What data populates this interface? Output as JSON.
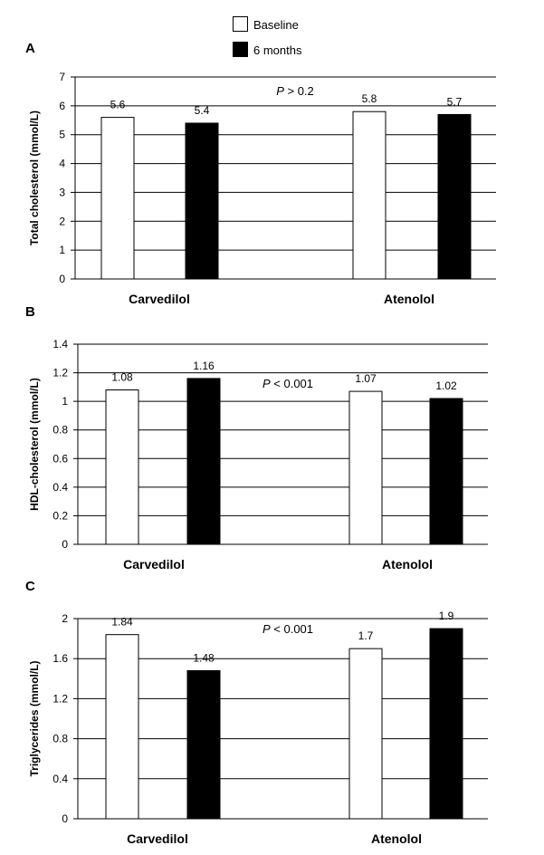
{
  "legend": {
    "items": [
      {
        "label": "Baseline",
        "color": "#ffffff"
      },
      {
        "label": "6 months",
        "color": "#000000"
      }
    ]
  },
  "chart_data": [
    {
      "type": "bar",
      "panel": "A",
      "categories": [
        "Carvedilol",
        "Atenolol"
      ],
      "series": [
        {
          "name": "Baseline",
          "values": [
            5.6,
            5.8
          ],
          "labels": [
            "5.6",
            "5.8"
          ]
        },
        {
          "name": "6 months",
          "values": [
            5.4,
            5.7
          ],
          "labels": [
            "5.4",
            "5.7"
          ]
        }
      ],
      "ylabel": "Total cholesterol (mmol/L)",
      "ylim": [
        0,
        7
      ],
      "yticks": [
        0,
        1,
        2,
        3,
        4,
        5,
        6,
        7
      ],
      "ytick_labels": [
        "0",
        "1",
        "2",
        "3",
        "4",
        "5",
        "6",
        "7"
      ],
      "annotation": {
        "p": "P",
        "rest": " > 0.2"
      },
      "grid": true
    },
    {
      "type": "bar",
      "panel": "B",
      "categories": [
        "Carvedilol",
        "Atenolol"
      ],
      "series": [
        {
          "name": "Baseline",
          "values": [
            1.08,
            1.07
          ],
          "labels": [
            "1.08",
            "1.07"
          ]
        },
        {
          "name": "6 months",
          "values": [
            1.16,
            1.02
          ],
          "labels": [
            "1.16",
            "1.02"
          ]
        }
      ],
      "ylabel": "HDL-cholesterol (mmol/L)",
      "ylim": [
        0,
        1.4
      ],
      "yticks": [
        0,
        0.2,
        0.4,
        0.6,
        0.8,
        1,
        1.2,
        1.4
      ],
      "ytick_labels": [
        "0",
        "0.2",
        "0.4",
        "0.6",
        "0.8",
        "1",
        "1.2",
        "1.4"
      ],
      "annotation": {
        "p": "P",
        "rest": " < 0.001"
      },
      "grid": true
    },
    {
      "type": "bar",
      "panel": "C",
      "categories": [
        "Carvedilol",
        "Atenolol"
      ],
      "series": [
        {
          "name": "Baseline",
          "values": [
            1.84,
            1.7
          ],
          "labels": [
            "1.84",
            "1.7"
          ]
        },
        {
          "name": "6 months",
          "values": [
            1.48,
            1.9
          ],
          "labels": [
            "1.48",
            "1.9"
          ]
        }
      ],
      "ylabel": "Triglycerides (mmol/L)",
      "ylim": [
        0,
        2
      ],
      "yticks": [
        0,
        0.4,
        0.8,
        1.2,
        1.6,
        2
      ],
      "ytick_labels": [
        "0",
        "0.4",
        "0.8",
        "1.2",
        "1.6",
        "2"
      ],
      "annotation": {
        "p": "P",
        "rest": " < 0.001"
      },
      "grid": true
    }
  ]
}
